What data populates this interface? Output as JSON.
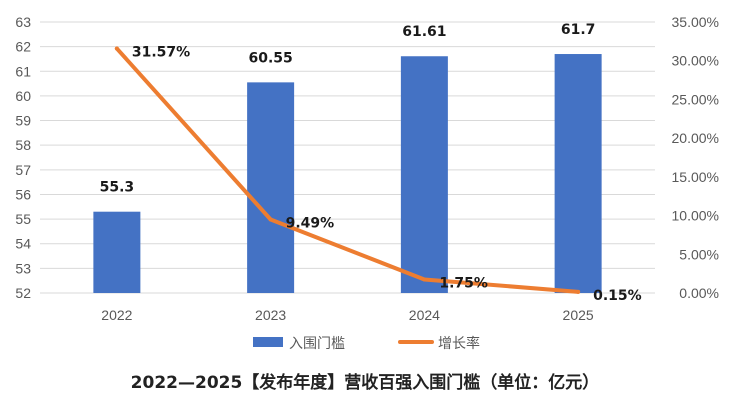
{
  "chart_data": {
    "type": "bar+line",
    "title": "2022—2025【发布年度】营收百强入围门槛（单位：亿元）",
    "categories": [
      "2022",
      "2023",
      "2024",
      "2025"
    ],
    "series": [
      {
        "name": "入围门槛",
        "type": "bar",
        "axis": "left",
        "values": [
          55.3,
          60.55,
          61.61,
          61.7
        ],
        "labels": [
          "55.3",
          "60.55",
          "61.61",
          "61.7"
        ],
        "color": "#4472C4"
      },
      {
        "name": "增长率",
        "type": "line",
        "axis": "right",
        "values": [
          31.57,
          9.49,
          1.75,
          0.15
        ],
        "labels": [
          "31.57%",
          "9.49%",
          "1.75%",
          "0.15%"
        ],
        "color": "#ED7D31"
      }
    ],
    "left_axis": {
      "ylim": [
        52,
        63
      ],
      "ticks": [
        "52",
        "53",
        "54",
        "55",
        "56",
        "57",
        "58",
        "59",
        "60",
        "61",
        "62",
        "63"
      ]
    },
    "right_axis": {
      "ylim": [
        0,
        35
      ],
      "ticks": [
        "0.00%",
        "5.00%",
        "10.00%",
        "15.00%",
        "20.00%",
        "25.00%",
        "30.00%",
        "35.00%"
      ]
    },
    "grid": true,
    "legend_position": "bottom"
  }
}
